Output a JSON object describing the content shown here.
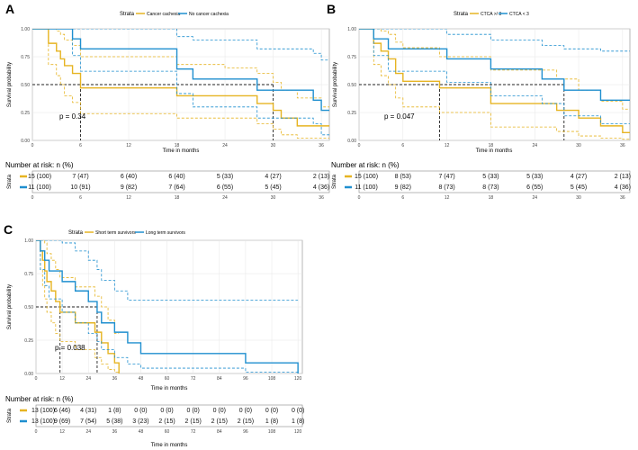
{
  "panels": [
    {
      "id": "A",
      "letter": "A",
      "legend_title": "Strata",
      "legend_labels": [
        "Cancer cachexia",
        "No cancer cachexia"
      ],
      "ylabel": "Survival probability",
      "xlabel": "Time in months",
      "pvalue": "p = 0.34",
      "risk_title": "Number at risk: n (%)",
      "risk_strata_label": "Strata",
      "risk_rows": [
        [
          "15 (100)",
          "7 (47)",
          "6 (40)",
          "6 (40)",
          "5 (33)",
          "4 (27)",
          "2 (13)"
        ],
        [
          "11 (100)",
          "10 (91)",
          "9 (82)",
          "7 (64)",
          "6 (55)",
          "5 (45)",
          "4 (36)"
        ]
      ]
    },
    {
      "id": "B",
      "letter": "B",
      "legend_title": "Strata",
      "legend_labels": [
        "CTCA >/ 3",
        "CTCA < 3"
      ],
      "ylabel": "Survival probability",
      "xlabel": "Time in months",
      "pvalue": "p = 0.047",
      "risk_title": "Number at risk: n (%)",
      "risk_strata_label": "Strata",
      "risk_rows": [
        [
          "15 (100)",
          "8 (53)",
          "7 (47)",
          "5 (33)",
          "5 (33)",
          "4 (27)",
          "2 (13)"
        ],
        [
          "11 (100)",
          "9 (82)",
          "8 (73)",
          "8 (73)",
          "6 (55)",
          "5 (45)",
          "4 (36)"
        ]
      ]
    },
    {
      "id": "C",
      "letter": "C",
      "legend_title": "Strata",
      "legend_labels": [
        "Short term survivors",
        "Long term survivors"
      ],
      "ylabel": "Survival probability",
      "xlabel": "Time in months",
      "pvalue": "p = 0.038",
      "risk_title": "Number at risk: n (%)",
      "risk_strata_label": "Strata",
      "risk_rows": [
        [
          "13 (100)",
          "6 (46)",
          "4 (31)",
          "1 (8)",
          "0 (0)",
          "0 (0)",
          "0 (0)",
          "0 (0)",
          "0 (0)",
          "0 (0)",
          "0 (0)"
        ],
        [
          "13 (100)",
          "9 (69)",
          "7 (54)",
          "5 (38)",
          "3 (23)",
          "2 (15)",
          "2 (15)",
          "2 (15)",
          "2 (15)",
          "1 (8)",
          "1 (8)"
        ]
      ]
    }
  ],
  "chart_data": [
    {
      "type": "line",
      "panel": "A",
      "subtype": "kaplan-meier",
      "xlabel": "Time in months",
      "ylabel": "Survival probability",
      "xlim": [
        0,
        37
      ],
      "ylim": [
        0,
        1
      ],
      "xticks": [
        0,
        6,
        12,
        18,
        24,
        30,
        36
      ],
      "yticks": [
        0.0,
        0.25,
        0.5,
        0.75,
        1.0
      ],
      "median_lines": [
        6,
        30
      ],
      "series": [
        {
          "name": "Cancer cachexia",
          "color": "#e6b422",
          "x": [
            0,
            2,
            3,
            3.5,
            4,
            5,
            6,
            12,
            18,
            24,
            28,
            30,
            31,
            33,
            36,
            37
          ],
          "y": [
            1.0,
            0.87,
            0.8,
            0.73,
            0.67,
            0.6,
            0.47,
            0.47,
            0.4,
            0.4,
            0.33,
            0.27,
            0.2,
            0.13,
            0.13,
            0.13
          ],
          "ci_upper": [
            1.0,
            1.0,
            0.98,
            0.95,
            0.9,
            0.85,
            0.75,
            0.75,
            0.68,
            0.65,
            0.6,
            0.52,
            0.45,
            0.38,
            0.3,
            0.3
          ],
          "ci_lower": [
            1.0,
            0.68,
            0.58,
            0.5,
            0.4,
            0.34,
            0.24,
            0.24,
            0.2,
            0.2,
            0.15,
            0.1,
            0.05,
            0.02,
            0.02,
            0.02
          ]
        },
        {
          "name": "No cancer cachexia",
          "color": "#1f8fcf",
          "x": [
            0,
            5,
            6,
            12,
            18,
            20,
            24,
            28,
            30,
            35,
            36,
            37
          ],
          "y": [
            1.0,
            0.91,
            0.82,
            0.82,
            0.64,
            0.55,
            0.55,
            0.45,
            0.45,
            0.36,
            0.27,
            0.27
          ],
          "ci_upper": [
            1.0,
            1.0,
            1.0,
            1.0,
            0.93,
            0.9,
            0.9,
            0.82,
            0.82,
            0.78,
            0.72,
            0.72
          ],
          "ci_lower": [
            1.0,
            0.76,
            0.62,
            0.62,
            0.42,
            0.3,
            0.3,
            0.2,
            0.2,
            0.15,
            0.05,
            0.05
          ]
        }
      ]
    },
    {
      "type": "line",
      "panel": "B",
      "subtype": "kaplan-meier",
      "xlabel": "Time in months",
      "ylabel": "Survival probability",
      "xlim": [
        0,
        37
      ],
      "ylim": [
        0,
        1
      ],
      "xticks": [
        0,
        6,
        12,
        18,
        24,
        30,
        36
      ],
      "yticks": [
        0.0,
        0.25,
        0.5,
        0.75,
        1.0
      ],
      "median_lines": [
        11,
        28
      ],
      "series": [
        {
          "name": "CTCA >/ 3",
          "color": "#e6b422",
          "x": [
            0,
            2,
            3,
            4,
            5,
            6,
            10,
            11,
            18,
            24,
            27,
            30,
            33,
            36,
            37
          ],
          "y": [
            1.0,
            0.87,
            0.8,
            0.73,
            0.6,
            0.53,
            0.53,
            0.47,
            0.33,
            0.33,
            0.27,
            0.2,
            0.13,
            0.07,
            0.07
          ],
          "ci_upper": [
            1.0,
            1.0,
            0.98,
            0.95,
            0.88,
            0.83,
            0.83,
            0.75,
            0.63,
            0.63,
            0.55,
            0.45,
            0.35,
            0.28,
            0.28
          ],
          "ci_lower": [
            1.0,
            0.68,
            0.58,
            0.5,
            0.38,
            0.3,
            0.3,
            0.25,
            0.12,
            0.12,
            0.08,
            0.04,
            0.02,
            0.01,
            0.01
          ]
        },
        {
          "name": "CTCA < 3",
          "color": "#1f8fcf",
          "x": [
            0,
            2,
            4,
            12,
            18,
            25,
            28,
            33,
            37
          ],
          "y": [
            1.0,
            0.91,
            0.82,
            0.73,
            0.64,
            0.55,
            0.45,
            0.36,
            0.36
          ],
          "ci_upper": [
            1.0,
            1.0,
            1.0,
            0.95,
            0.9,
            0.85,
            0.82,
            0.8,
            0.8
          ],
          "ci_lower": [
            1.0,
            0.76,
            0.62,
            0.52,
            0.4,
            0.33,
            0.22,
            0.15,
            0.15
          ]
        }
      ]
    },
    {
      "type": "line",
      "panel": "C",
      "subtype": "kaplan-meier",
      "xlabel": "Time in months",
      "ylabel": "Survival probability",
      "xlim": [
        0,
        122
      ],
      "ylim": [
        0,
        1
      ],
      "xticks": [
        0,
        12,
        24,
        36,
        48,
        60,
        72,
        84,
        96,
        108,
        120
      ],
      "yticks": [
        0.0,
        0.25,
        0.5,
        0.75,
        1.0
      ],
      "median_lines": [
        11,
        28
      ],
      "series": [
        {
          "name": "Short term survivors",
          "color": "#e6b422",
          "x": [
            0,
            2,
            3,
            4,
            5,
            7,
            9,
            11,
            18,
            27,
            30,
            33,
            36,
            38
          ],
          "y": [
            1.0,
            0.92,
            0.85,
            0.77,
            0.69,
            0.62,
            0.54,
            0.46,
            0.38,
            0.31,
            0.23,
            0.15,
            0.08,
            0.0
          ],
          "ci_upper": [
            1.0,
            1.0,
            1.0,
            0.98,
            0.9,
            0.85,
            0.78,
            0.72,
            0.65,
            0.58,
            0.5,
            0.4,
            0.3,
            0.3
          ],
          "ci_lower": [
            1.0,
            0.78,
            0.66,
            0.56,
            0.46,
            0.38,
            0.3,
            0.24,
            0.18,
            0.12,
            0.07,
            0.03,
            0.01,
            0.0
          ]
        },
        {
          "name": "Long term survivors",
          "color": "#1f8fcf",
          "x": [
            0,
            2,
            4,
            6,
            12,
            18,
            24,
            28,
            30,
            36,
            42,
            48,
            96,
            120
          ],
          "y": [
            1.0,
            0.92,
            0.85,
            0.77,
            0.69,
            0.62,
            0.54,
            0.46,
            0.38,
            0.31,
            0.23,
            0.15,
            0.08,
            0.0
          ],
          "ci_upper": [
            1.0,
            1.0,
            1.0,
            1.0,
            0.98,
            0.92,
            0.85,
            0.78,
            0.7,
            0.62,
            0.55,
            0.55,
            0.55,
            0.55
          ],
          "ci_lower": [
            1.0,
            0.78,
            0.66,
            0.56,
            0.46,
            0.38,
            0.3,
            0.24,
            0.18,
            0.12,
            0.07,
            0.04,
            0.01,
            0.0
          ]
        }
      ]
    }
  ]
}
